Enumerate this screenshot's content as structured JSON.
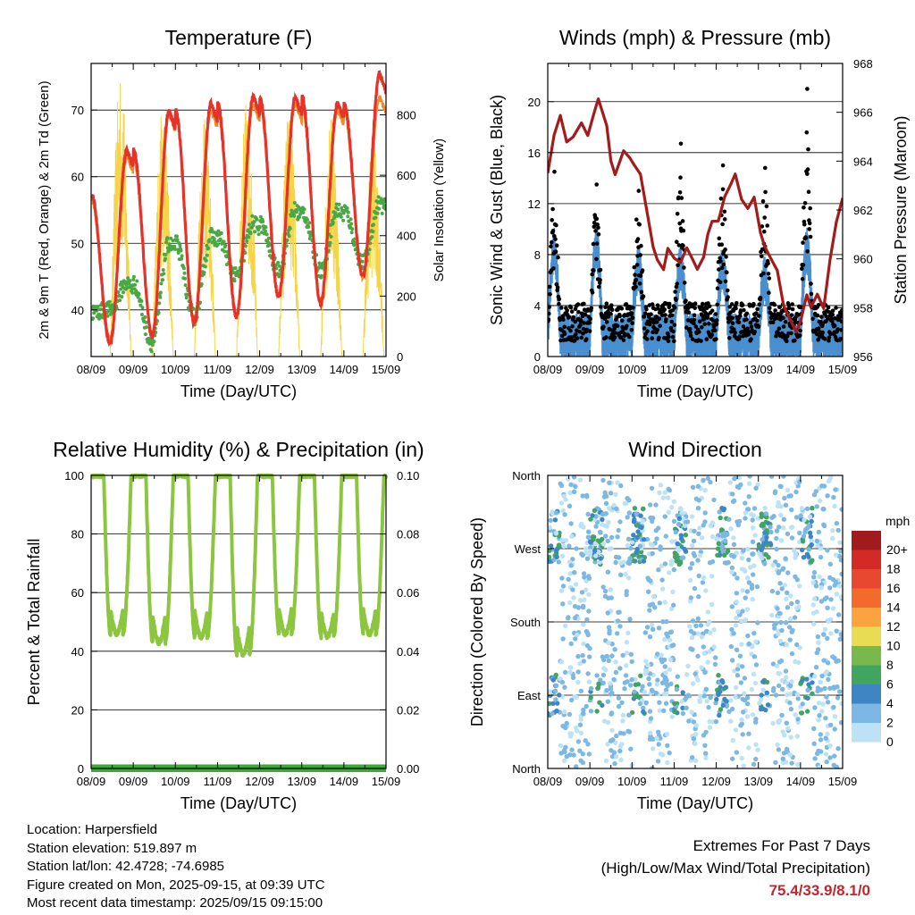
{
  "chart_data": [
    {
      "type": "line",
      "title": "Temperature (F)",
      "xlabel": "Time (Day/UTC)",
      "ylabel": "2m & 9m T (Red, Orange) & 2m Td (Green)",
      "y2label": "Solar Insolation (Yellow)",
      "x_ticks": [
        "08/09",
        "09/09",
        "10/09",
        "11/09",
        "12/09",
        "13/09",
        "14/09",
        "15/09"
      ],
      "xlim": [
        0,
        7
      ],
      "ylim": [
        33,
        77
      ],
      "y_ticks": [
        40,
        50,
        60,
        70
      ],
      "y2lim": [
        0,
        970
      ],
      "y2_ticks": [
        0,
        200,
        400,
        600,
        800
      ],
      "grid": true,
      "series": [
        {
          "color": "#e6332a",
          "daily_max": [
            64,
            70,
            71,
            72,
            72,
            71,
            75.4
          ],
          "daily_min": [
            35,
            36,
            38,
            39,
            42,
            41,
            45
          ]
        },
        {
          "color": "#f08a24",
          "daily_max": [
            63,
            69.5,
            70,
            71,
            71,
            70,
            72
          ],
          "daily_min": [
            35.5,
            36.5,
            38.5,
            39.5,
            42,
            41,
            45
          ]
        },
        {
          "color": "#4aa844",
          "daily_max": [
            44,
            50,
            51,
            53,
            55,
            55,
            56
          ],
          "daily_min": [
            40,
            35,
            39,
            45,
            46,
            46,
            47
          ]
        },
        {
          "color": "#f5d547",
          "axis": "y2",
          "daily_peak": [
            940,
            830,
            790,
            860,
            830,
            800,
            750
          ]
        }
      ]
    },
    {
      "type": "scatter",
      "title": "Winds (mph) & Pressure (mb)",
      "xlabel": "Time (Day/UTC)",
      "ylabel": "Sonic Wind & Gust (Blue, Black)",
      "y2label": "Station Pressure (Maroon)",
      "x_ticks": [
        "08/09",
        "09/09",
        "10/09",
        "11/09",
        "12/09",
        "13/09",
        "14/09",
        "15/09"
      ],
      "xlim": [
        0,
        7
      ],
      "ylim": [
        0,
        23
      ],
      "y_ticks": [
        0,
        4,
        8,
        12,
        16,
        20
      ],
      "y2lim": [
        956,
        968
      ],
      "y2_ticks": [
        956,
        958,
        960,
        962,
        964,
        966,
        968
      ],
      "grid": true,
      "series": [
        {
          "color": "#4a90d0",
          "daily_peak": [
            7.5,
            8,
            6,
            6,
            6,
            5,
            7.5
          ]
        },
        {
          "color": "#000000",
          "daily_peak": [
            14.5,
            13.5,
            13,
            16.7,
            15,
            14.8,
            21
          ]
        },
        {
          "color": "#a31b1b",
          "axis": "y2",
          "x": [
            0,
            0.15,
            0.3,
            0.45,
            0.6,
            0.8,
            0.95,
            1.1,
            1.2,
            1.3,
            1.4,
            1.5,
            1.6,
            1.8,
            1.95,
            2.05,
            2.2,
            2.35,
            2.5,
            2.6,
            2.75,
            2.85,
            3.0,
            3.15,
            3.3,
            3.45,
            3.55,
            3.7,
            3.8,
            3.9,
            4.05,
            4.2,
            4.35,
            4.45,
            4.6,
            4.75,
            4.9,
            5.05,
            5.15,
            5.3,
            5.45,
            5.6,
            5.75,
            5.9,
            6.0,
            6.15,
            6.25,
            6.4,
            6.55,
            6.7,
            6.85,
            7.0
          ],
          "y": [
            963.5,
            965.0,
            965.8,
            964.8,
            965.0,
            965.5,
            965.0,
            966.0,
            966.5,
            966.0,
            965.5,
            964.0,
            963.5,
            964.5,
            964.2,
            963.8,
            963.5,
            962.0,
            960.5,
            960.0,
            959.5,
            960.5,
            960.0,
            959.8,
            960.5,
            960.0,
            959.5,
            960.0,
            961.0,
            961.5,
            961.5,
            962.5,
            963.0,
            963.5,
            962.5,
            962.0,
            962.5,
            961.0,
            960.5,
            960.0,
            959.5,
            958.0,
            957.5,
            957.0,
            957.5,
            958.5,
            958.0,
            958.5,
            958.0,
            960.0,
            961.5,
            962.5
          ]
        }
      ]
    },
    {
      "type": "line",
      "title": "Relative Humidity (%) & Precipitation (in)",
      "xlabel": "Time (Day/UTC)",
      "ylabel": "Percent & Total Rainfall",
      "x_ticks": [
        "08/09",
        "09/09",
        "10/09",
        "11/09",
        "12/09",
        "13/09",
        "14/09",
        "15/09"
      ],
      "xlim": [
        0,
        7
      ],
      "ylim": [
        0,
        100
      ],
      "y_ticks": [
        0,
        20,
        40,
        60,
        80,
        100
      ],
      "y2lim": [
        0,
        0.1
      ],
      "y2_ticks": [
        "0.00",
        "0.02",
        "0.04",
        "0.06",
        "0.08",
        "0.10"
      ],
      "grid": true,
      "series": [
        {
          "color": "#8cc63f",
          "daily_min": [
            46,
            43,
            45,
            39,
            46,
            45,
            46
          ],
          "daily_max": [
            100,
            100,
            100,
            100,
            100,
            100,
            100
          ]
        },
        {
          "color": "#3aa935",
          "axis": "y2",
          "values_constant": 0
        }
      ]
    },
    {
      "type": "scatter",
      "title": "Wind Direction",
      "xlabel": "Time (Day/UTC)",
      "ylabel": "Direction (Colored By Speed)",
      "x_ticks": [
        "08/09",
        "09/09",
        "10/09",
        "11/09",
        "12/09",
        "13/09",
        "14/09",
        "15/09"
      ],
      "xlim": [
        0,
        7
      ],
      "ylim": [
        0,
        360
      ],
      "y_ticks": [
        "North",
        "East",
        "South",
        "West",
        "North"
      ],
      "grid": true,
      "colorbar": {
        "title": "mph",
        "labels": [
          "20+",
          "18",
          "16",
          "14",
          "12",
          "10",
          "8",
          "6",
          "4",
          "2",
          "0"
        ],
        "colors": [
          "#a11a1d",
          "#d42a25",
          "#e8482f",
          "#f36b2c",
          "#fba43f",
          "#e8dc55",
          "#79b94b",
          "#41a461",
          "#3d86c3",
          "#7cb8e3",
          "#bde2f5"
        ]
      }
    }
  ],
  "footer": {
    "location": "Location: Harpersfield",
    "elevation": "Station elevation: 519.897 m",
    "latlon": "Station lat/lon: 42.4728; -74.6985",
    "created": "Figure created on Mon, 2025-09-15, at 09:39 UTC",
    "recent": "Most recent data timestamp: 2025/09/15 09:15:00"
  },
  "extremes": {
    "title": "Extremes For Past 7 Days",
    "subtitle": "(High/Low/Max Wind/Total Precipitation)",
    "values": "75.4/33.9/8.1/0"
  }
}
